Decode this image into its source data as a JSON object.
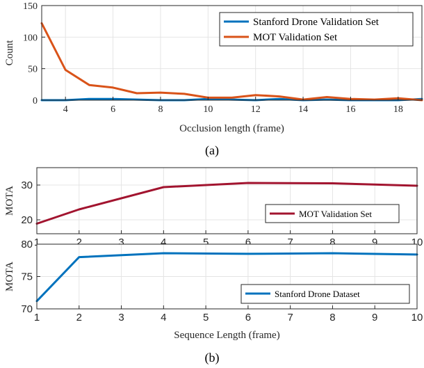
{
  "figure_labels": {
    "a": "(a)",
    "b": "(b)"
  },
  "chart_data": [
    {
      "type": "line",
      "xlabel": "Occlusion length (frame)",
      "ylabel": "Count",
      "xlim": [
        3,
        19
      ],
      "ylim": [
        0,
        150
      ],
      "xticks": [
        4,
        6,
        8,
        10,
        12,
        14,
        16,
        18
      ],
      "yticks": [
        0,
        50,
        100,
        150
      ],
      "grid": true,
      "legend_position": "top-right",
      "x": [
        3,
        4,
        5,
        6,
        7,
        8,
        9,
        10,
        11,
        12,
        13,
        14,
        15,
        16,
        17,
        18,
        19
      ],
      "series": [
        {
          "name": "Stanford Drone Validation Set",
          "color": "#0072BD",
          "values": [
            0,
            0,
            2,
            2,
            1,
            0,
            0,
            2,
            1,
            0,
            2,
            0,
            1,
            0,
            0,
            0,
            2
          ]
        },
        {
          "name": "MOT Validation Set",
          "color": "#D95319",
          "values": [
            122,
            48,
            24,
            20,
            11,
            12,
            10,
            4,
            4,
            8,
            6,
            1,
            5,
            2,
            1,
            3,
            0
          ]
        }
      ]
    },
    {
      "type": "line",
      "xlabel": "",
      "ylabel": "MOTA",
      "xlim": [
        1,
        10
      ],
      "ylim": [
        16,
        35
      ],
      "xticks": [
        1,
        2,
        3,
        4,
        5,
        6,
        7,
        8,
        9,
        10
      ],
      "yticks": [
        20,
        30
      ],
      "grid": true,
      "legend_position": "bottom-right",
      "x": [
        1,
        2,
        4,
        6,
        8,
        10
      ],
      "series": [
        {
          "name": "MOT Validation Set",
          "color": "#A2142F",
          "values": [
            18.9,
            23.0,
            29.4,
            30.6,
            30.5,
            29.8
          ]
        }
      ]
    },
    {
      "type": "line",
      "xlabel": "Sequence Length (frame)",
      "ylabel": "MOTA",
      "xlim": [
        1,
        10
      ],
      "ylim": [
        70,
        80
      ],
      "xticks": [
        1,
        2,
        3,
        4,
        5,
        6,
        7,
        8,
        9,
        10
      ],
      "yticks": [
        70,
        75,
        80
      ],
      "grid": true,
      "legend_position": "bottom-right",
      "x": [
        1,
        2,
        4,
        6,
        8,
        10
      ],
      "series": [
        {
          "name": "Stanford Drone Dataset",
          "color": "#0072BD",
          "values": [
            71.2,
            78.0,
            78.6,
            78.5,
            78.6,
            78.4
          ]
        }
      ]
    }
  ]
}
